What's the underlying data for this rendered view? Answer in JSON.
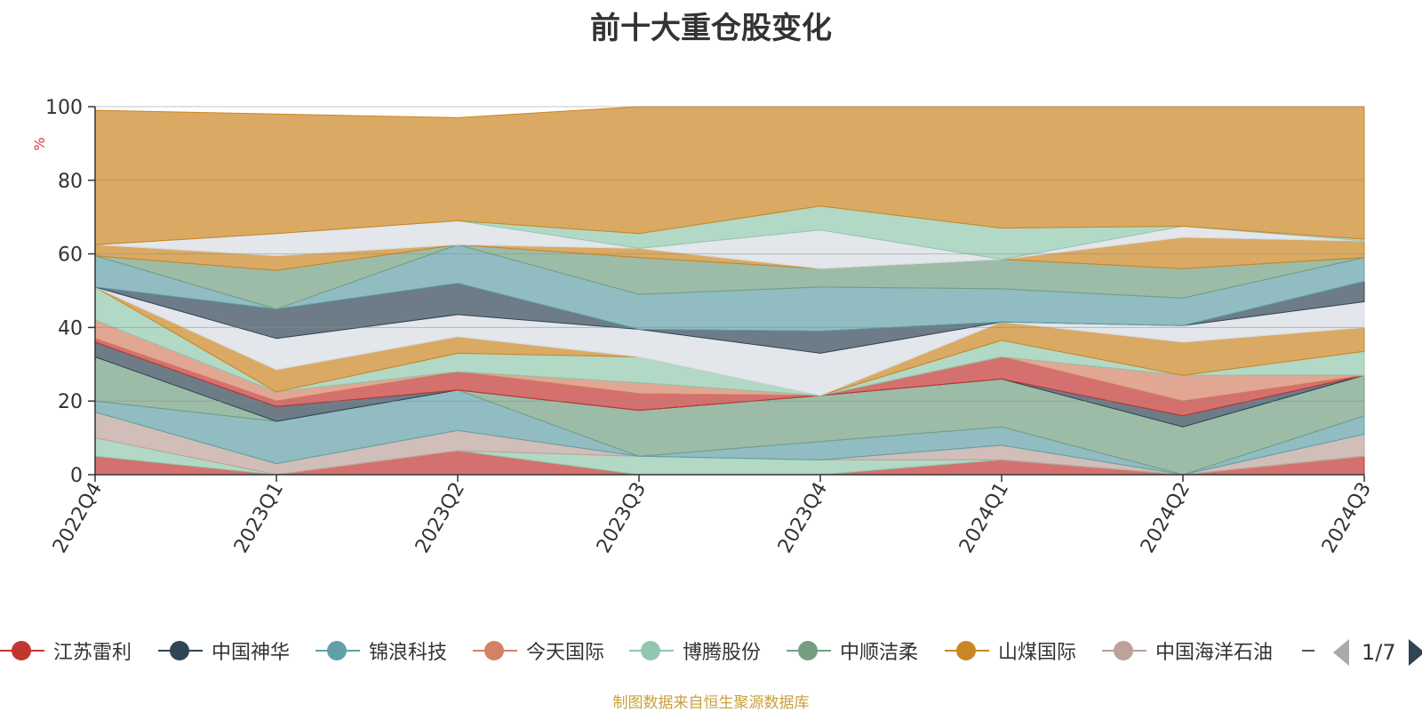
{
  "title": "前十大重仓股变化",
  "source_note": "制图数据来自恒生聚源数据库",
  "legend": {
    "page": "1/7",
    "items": [
      {
        "name": "江苏雷利",
        "color": "#c23531"
      },
      {
        "name": "中国神华",
        "color": "#2f4554"
      },
      {
        "name": "锦浪科技",
        "color": "#61a0a8"
      },
      {
        "name": "今天国际",
        "color": "#d48265"
      },
      {
        "name": "博腾股份",
        "color": "#91c7ae"
      },
      {
        "name": "中顺洁柔",
        "color": "#749f83"
      },
      {
        "name": "山煤国际",
        "color": "#ca8622"
      },
      {
        "name": "中国海洋石油",
        "color": "#bda29a"
      }
    ]
  },
  "chart_data": {
    "type": "area",
    "title": "前十大重仓股变化",
    "ylabel": "%",
    "ylim": [
      0,
      100
    ],
    "yticks": [
      0,
      20,
      40,
      60,
      80,
      100
    ],
    "grid": true,
    "categories": [
      "2022Q4",
      "2023Q1",
      "2023Q2",
      "2023Q3",
      "2023Q4",
      "2024Q1",
      "2024Q2",
      "2024Q3"
    ],
    "boundaries": [
      [
        0,
        0,
        0,
        0,
        0,
        0,
        0,
        0
      ],
      [
        5,
        0,
        6.5,
        0,
        0,
        4,
        0,
        5
      ],
      [
        10,
        0,
        6.5,
        5,
        4,
        4,
        0,
        5
      ],
      [
        17,
        3,
        12,
        5,
        4,
        8,
        0,
        11
      ],
      [
        20,
        14.5,
        23,
        5,
        9,
        13,
        0,
        16
      ],
      [
        32,
        14.5,
        23,
        17.5,
        21.5,
        26,
        13,
        27
      ],
      [
        36,
        18.5,
        23,
        17.5,
        21.5,
        26,
        16,
        27
      ],
      [
        37,
        20,
        28,
        22,
        21.5,
        32,
        20,
        27
      ],
      [
        42,
        22.5,
        28,
        25,
        21.5,
        32,
        27,
        27
      ],
      [
        51,
        22.5,
        33,
        32,
        21.5,
        36.5,
        27,
        33.5
      ],
      [
        51,
        28.5,
        37.5,
        32,
        21.5,
        41.5,
        36,
        40
      ],
      [
        51,
        37,
        43.5,
        39.5,
        33,
        41.5,
        40.5,
        47
      ],
      [
        51,
        45,
        52,
        39.5,
        39,
        41.5,
        40.5,
        52.5
      ],
      [
        59.5,
        45,
        62.5,
        49,
        51,
        50.5,
        48,
        59
      ],
      [
        59.5,
        55.5,
        62.5,
        59,
        56,
        58.5,
        56,
        59
      ],
      [
        62.5,
        59.5,
        62.5,
        61.5,
        56,
        58.5,
        64.5,
        63.5
      ],
      [
        62.5,
        65.5,
        69,
        61.5,
        66.5,
        58.5,
        67.5,
        63.5
      ],
      [
        62.5,
        65.5,
        69,
        65.5,
        73,
        67,
        67.5,
        64
      ],
      [
        99,
        98,
        97,
        100,
        100,
        100,
        100,
        100
      ]
    ],
    "band_colors": [
      "#c23531",
      "#91c7ae",
      "#bda29a",
      "#61a0a8",
      "#749f83",
      "#2f4554",
      "#c23531",
      "#d48265",
      "#91c7ae",
      "#ca8622",
      "#d7dbe3",
      "#2f4554",
      "#61a0a8",
      "#749f83",
      "#ca8622",
      "#d7dbe3",
      "#91c7ae",
      "#ca8622"
    ]
  }
}
